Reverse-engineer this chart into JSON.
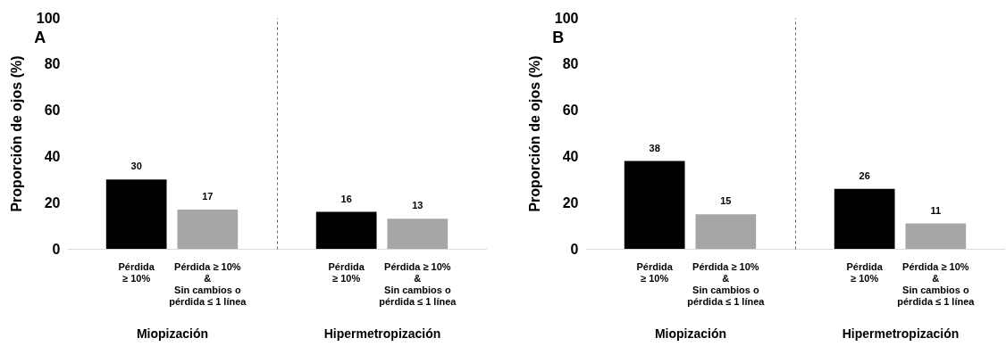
{
  "chart_data": [
    {
      "type": "bar",
      "title": "A",
      "ylabel": "Proporción  de ojos (%)",
      "xlabel": "Miopización",
      "categories": [
        "Pérdida\n≥ 10%",
        "Pérdida ≥ 10%\n&\nSin cambios o\npérdida ≤ 1 línea"
      ],
      "values": [
        30,
        17
      ],
      "colors": [
        "#000000",
        "#a6a6a6"
      ],
      "ylim": [
        0,
        100
      ],
      "yticks": [
        0,
        20,
        40,
        60,
        80,
        100
      ],
      "data_labels": true,
      "grid": false
    },
    {
      "type": "bar",
      "xlabel": "Hipermetropización",
      "categories": [
        "Pérdida\n≥ 10%",
        "Pérdida ≥ 10%\n&\nSin cambios o\npérdida ≤ 1 línea"
      ],
      "values": [
        16,
        13
      ],
      "colors": [
        "#000000",
        "#a6a6a6"
      ],
      "ylim": [
        0,
        100
      ],
      "tick_labels": "x",
      "data_labels": true,
      "grid": false
    },
    {
      "type": "bar",
      "title": "B",
      "ylabel": "Proporción  de ojos (%)",
      "xlabel": "Miopización",
      "categories": [
        "Pérdida\n≥ 10%",
        "Pérdida ≥ 10%\n&\nSin cambios o\npérdida ≤ 1 línea"
      ],
      "values": [
        38,
        15
      ],
      "colors": [
        "#000000",
        "#a6a6a6"
      ],
      "ylim": [
        0,
        100
      ],
      "yticks": [
        0,
        20,
        40,
        60,
        80,
        100
      ],
      "data_labels": true,
      "grid": false
    },
    {
      "type": "bar",
      "xlabel": "Hipermetropización",
      "categories": [
        "Pérdida\n≥ 10%",
        "Pérdida ≥ 10%\n&\nSin cambios o\npérdida ≤ 1 línea"
      ],
      "values": [
        26,
        11
      ],
      "colors": [
        "#000000",
        "#a6a6a6"
      ],
      "ylim": [
        0,
        100
      ],
      "tick_labels": "x",
      "data_labels": true,
      "grid": false
    }
  ]
}
